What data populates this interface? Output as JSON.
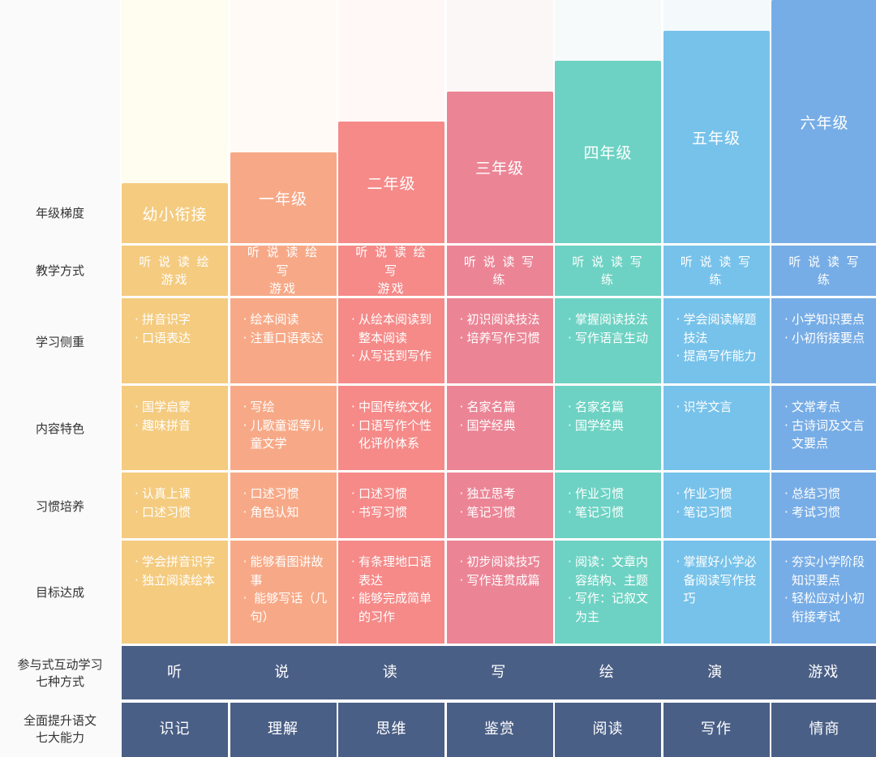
{
  "row_labels": {
    "grade": "年级梯度",
    "method": "教学方式",
    "focus": "学习侧重",
    "content": "内容特色",
    "habit": "习惯培养",
    "goal": "目标达成",
    "ways": "参与式互动学习\n七种方式",
    "ability": "全面提升语文\n七大能力"
  },
  "colors": {
    "row_label_bg": "#fafafa",
    "bottom_bands": "#4a5f86"
  },
  "columns": [
    {
      "grade": "幼小衔接",
      "color": "#f4cb7f",
      "bg": "#fffcf0",
      "method": "听 说 读 绘\n游戏",
      "focus": [
        "拼音识字",
        "口语表达"
      ],
      "content": [
        "国学启蒙",
        "趣味拼音"
      ],
      "habit": [
        "认真上课",
        "口述习惯"
      ],
      "goal": [
        "学会拼音识字",
        "独立阅读绘本"
      ],
      "way": "听",
      "ability": "识记"
    },
    {
      "grade": "一年级",
      "color": "#f7a987",
      "bg": "#fffaf5",
      "method": "听 说 读 绘 写\n游戏",
      "focus": [
        "绘本阅读",
        "注重口语表达"
      ],
      "content": [
        "写绘",
        "儿歌童谣等儿童文学"
      ],
      "habit": [
        "口述习惯",
        "角色认知"
      ],
      "goal": [
        "能够看图讲故事",
        " 能够写话（几句）"
      ],
      "way": "说",
      "ability": "理解"
    },
    {
      "grade": "二年级",
      "color": "#f58a88",
      "bg": "#fff8f6",
      "method": "听 说 读 绘 写\n游戏",
      "focus": [
        "从绘本阅读到整本阅读",
        "从写话到写作"
      ],
      "content": [
        "中国传统文化",
        "口语写作个性化评价体系"
      ],
      "habit": [
        "口述习惯",
        "书写习惯"
      ],
      "goal": [
        "有条理地口语表达",
        "能够完成简单的习作"
      ],
      "way": "读",
      "ability": "思维"
    },
    {
      "grade": "三年级",
      "color": "#eb8596",
      "bg": "#fbf7f6",
      "method": "听 说 读 写 练",
      "focus": [
        "初识阅读技法",
        "培养写作习惯"
      ],
      "content": [
        "名家名篇",
        "国学经典"
      ],
      "habit": [
        "独立思考",
        "笔记习惯"
      ],
      "goal": [
        "初步阅读技巧",
        "写作连贯成篇"
      ],
      "way": "写",
      "ability": "鉴赏"
    },
    {
      "grade": "四年级",
      "color": "#6dd2c3",
      "bg": "#f6fafa",
      "method": "听 说 读 写 练",
      "focus": [
        "掌握阅读技法",
        "写作语言生动"
      ],
      "content": [
        "名家名篇",
        "国学经典"
      ],
      "habit": [
        "作业习惯",
        "笔记习惯"
      ],
      "goal": [
        "阅读：文章内容结构、主题",
        "写作：记叙文为主"
      ],
      "way": "绘",
      "ability": "阅读"
    },
    {
      "grade": "五年级",
      "color": "#77c2ea",
      "bg": "#f4f9fc",
      "method": "听 说 读 写 练",
      "focus": [
        "学会阅读解题技法",
        "提高写作能力"
      ],
      "content": [
        "识学文言"
      ],
      "habit": [
        "作业习惯",
        "笔记习惯"
      ],
      "goal": [
        "掌握好小学必备阅读写作技巧"
      ],
      "way": "演",
      "ability": "写作"
    },
    {
      "grade": "六年级",
      "color": "#77ade6",
      "bg": "#f3f7fc",
      "method": "听 说 读 写 练",
      "focus": [
        "小学知识要点",
        "小初衔接要点"
      ],
      "content": [
        "文常考点",
        "古诗词及文言文要点"
      ],
      "habit": [
        "总结习惯",
        "考试习惯"
      ],
      "goal": [
        "夯实小学阶段知识要点",
        "轻松应对小初衔接考试"
      ],
      "way": "游戏",
      "ability": "情商"
    }
  ]
}
